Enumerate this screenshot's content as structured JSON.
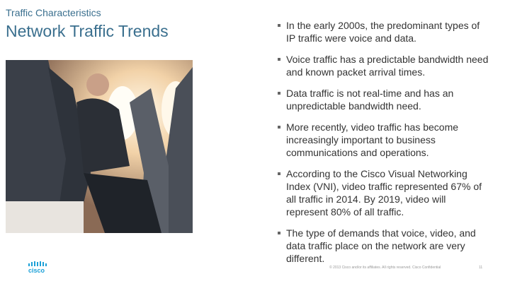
{
  "header": {
    "section": "Traffic Characteristics",
    "title": "Network Traffic Trends"
  },
  "bullets": [
    "In the early 2000s, the predominant types of IP traffic were voice and data.",
    "Voice traffic has a predictable bandwidth need and known packet arrival times.",
    "Data traffic is not real-time and has an unpredictable bandwidth need.",
    "More recently, video traffic has become increasingly important to business communications and operations.",
    "According to the Cisco Visual Networking Index (VNI), video traffic represented 67% of all traffic in 2014.  By 2019, video will represent 80% of all traffic.",
    "The type of demands that voice, video, and data traffic place on the network are very different."
  ],
  "footer": {
    "logo": "cisco",
    "copyright": "© 2013 Cisco and/or its affiliates. All rights reserved.   Cisco Confidential",
    "page": "11"
  }
}
